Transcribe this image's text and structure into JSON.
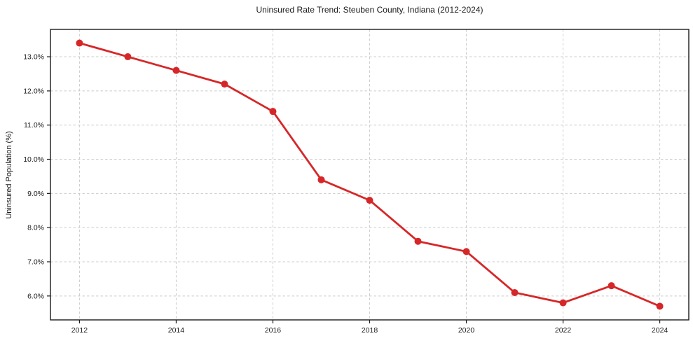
{
  "chart_data": {
    "type": "line",
    "title": "Uninsured Rate Trend: Steuben County, Indiana (2012-2024)",
    "ylabel": "Uninsured Population (%)",
    "xlabel": "",
    "x": [
      2012,
      2013,
      2014,
      2015,
      2016,
      2017,
      2018,
      2019,
      2020,
      2021,
      2022,
      2023,
      2024
    ],
    "series": [
      {
        "name": "Uninsured rate",
        "values": [
          13.4,
          13.0,
          12.6,
          12.2,
          11.4,
          9.4,
          8.8,
          7.6,
          7.3,
          6.1,
          5.8,
          6.3,
          5.7
        ]
      }
    ],
    "x_tick_values": [
      2012,
      2014,
      2016,
      2018,
      2020,
      2022,
      2024
    ],
    "x_tick_labels": [
      "2012",
      "2014",
      "2016",
      "2018",
      "2020",
      "2022",
      "2024"
    ],
    "y_tick_values": [
      6,
      7,
      8,
      9,
      10,
      11,
      12,
      13
    ],
    "y_tick_labels": [
      "6.0%",
      "7.0%",
      "8.0%",
      "9.0%",
      "10.0%",
      "11.0%",
      "12.0%",
      "13.0%"
    ],
    "xlim": [
      2011.4,
      2024.6
    ],
    "ylim": [
      5.3,
      13.8
    ],
    "grid": true,
    "grid_style": "dashed",
    "legend_position": "none",
    "colors": {
      "line": "#d62728",
      "marker": "#d62728",
      "grid": "#cccccc",
      "spine": "#1a1a1a",
      "tick_text": "#1a1a1a",
      "background": "#ffffff"
    }
  }
}
